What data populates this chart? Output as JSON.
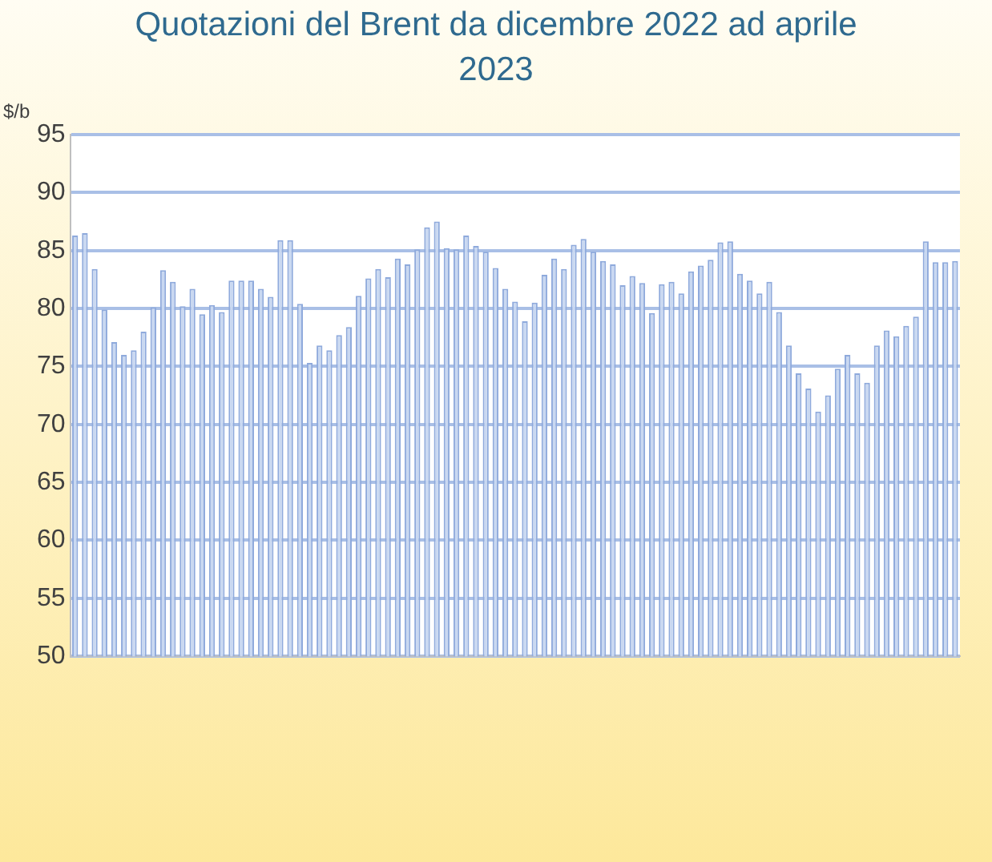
{
  "chart_data": {
    "type": "bar",
    "title": "Quotazioni del Brent da dicembre 2022 ad aprile 2023",
    "ylabel": "$/b",
    "categories": [
      null,
      null,
      null,
      null,
      null,
      null,
      null,
      null,
      null,
      null,
      null,
      null,
      null,
      null,
      null,
      null,
      null,
      null,
      null,
      null,
      null,
      null,
      null,
      null,
      null,
      null,
      null,
      null,
      null,
      null,
      null,
      null,
      null,
      null,
      null,
      null,
      null,
      null,
      null,
      null,
      null,
      null,
      null,
      null,
      null,
      null,
      null,
      null,
      null,
      null,
      null,
      null,
      null,
      null,
      null,
      null,
      null,
      null,
      null,
      null,
      null,
      null,
      null,
      null,
      null,
      null,
      null,
      null,
      null,
      null,
      null,
      null,
      null,
      null,
      null,
      null,
      null,
      null,
      null,
      null,
      null,
      null,
      null,
      null,
      null,
      null,
      null,
      null,
      null,
      null,
      null
    ],
    "values": [
      86.3,
      86.5,
      83.4,
      79.9,
      77.1,
      76.0,
      76.4,
      78.0,
      80.1,
      83.3,
      82.3,
      80.2,
      81.7,
      79.5,
      80.3,
      79.7,
      82.4,
      82.4,
      82.4,
      81.7,
      81.0,
      85.9,
      85.9,
      80.4,
      75.3,
      76.8,
      76.4,
      77.7,
      78.4,
      81.1,
      82.6,
      83.4,
      82.7,
      84.3,
      83.8,
      85.1,
      87.0,
      87.5,
      85.2,
      85.1,
      86.3,
      85.4,
      84.9,
      83.5,
      81.7,
      80.6,
      78.9,
      80.5,
      82.9,
      84.3,
      83.4,
      85.5,
      86.0,
      84.9,
      84.1,
      83.8,
      82.0,
      82.8,
      82.2,
      79.6,
      82.1,
      82.3,
      81.3,
      83.2,
      83.7,
      84.2,
      85.7,
      85.8,
      83.0,
      82.4,
      81.3,
      82.3,
      79.7,
      76.8,
      74.4,
      73.1,
      71.1,
      72.5,
      74.8,
      76.0,
      74.4,
      73.6,
      76.8,
      78.1,
      77.6,
      78.5,
      79.3,
      85.8,
      84.0,
      84.0,
      84.1
    ],
    "color": "#c9d8f1",
    "ylim": [
      50,
      95
    ],
    "yticks": [
      50,
      55,
      60,
      65,
      70,
      75,
      80,
      85,
      90,
      95
    ],
    "grid": "y"
  }
}
